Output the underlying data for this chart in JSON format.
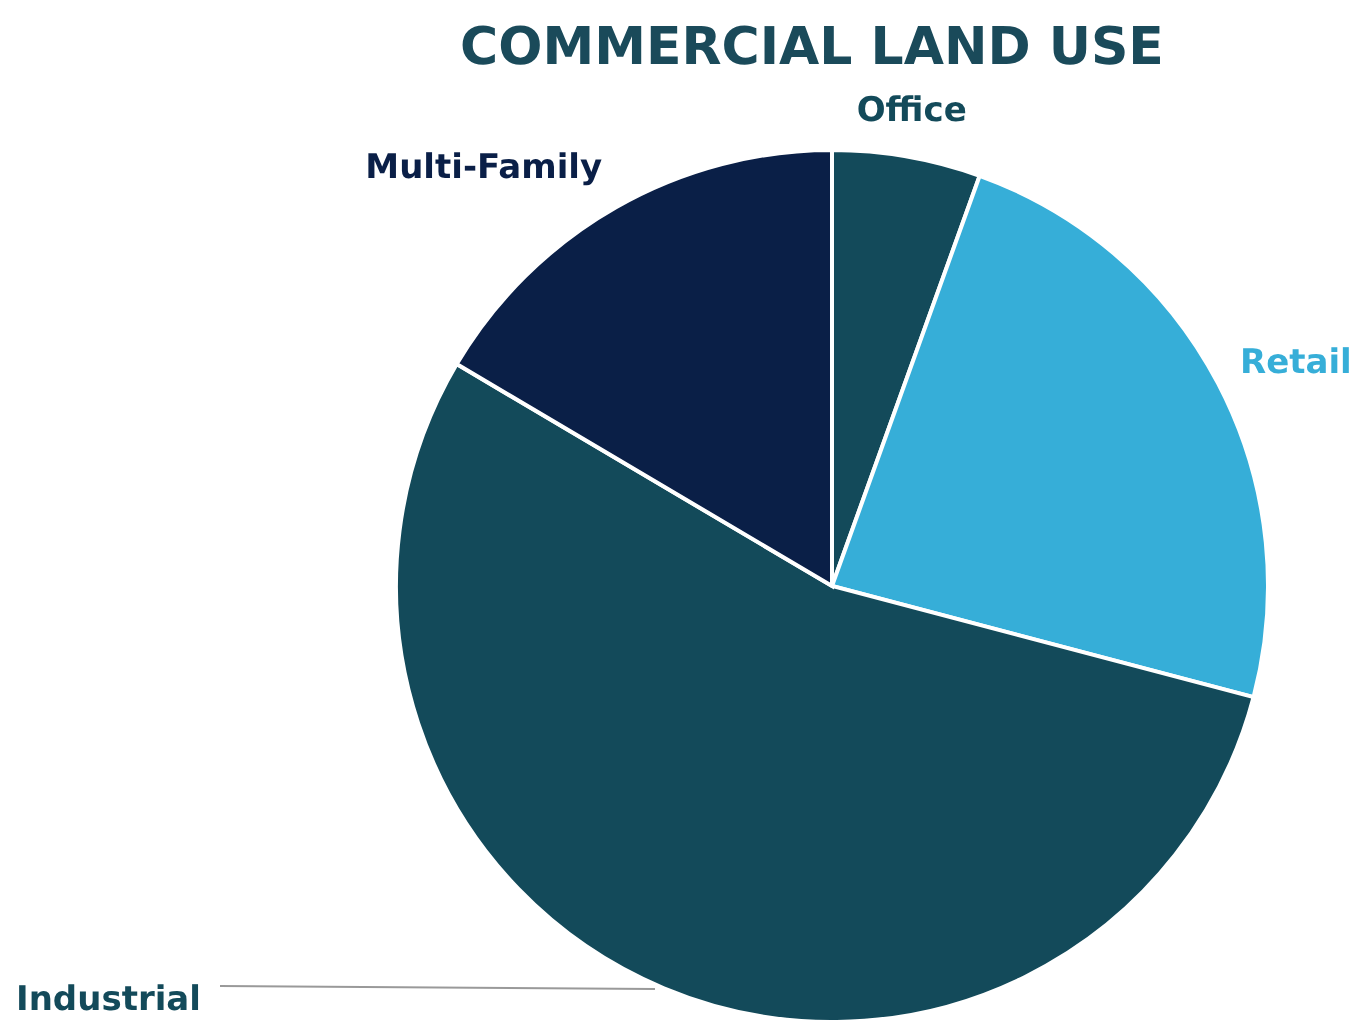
{
  "chart_data": {
    "type": "pie",
    "title": "COMMERCIAL LAND USE",
    "categories": [
      "Office",
      "Retail",
      "Industrial",
      "Multi-Family"
    ],
    "values": [
      5.5,
      23.6,
      54.4,
      16.5
    ],
    "colors": [
      "#134a5a",
      "#36aed8",
      "#134a5a",
      "#0a1f47"
    ],
    "legend": false
  }
}
